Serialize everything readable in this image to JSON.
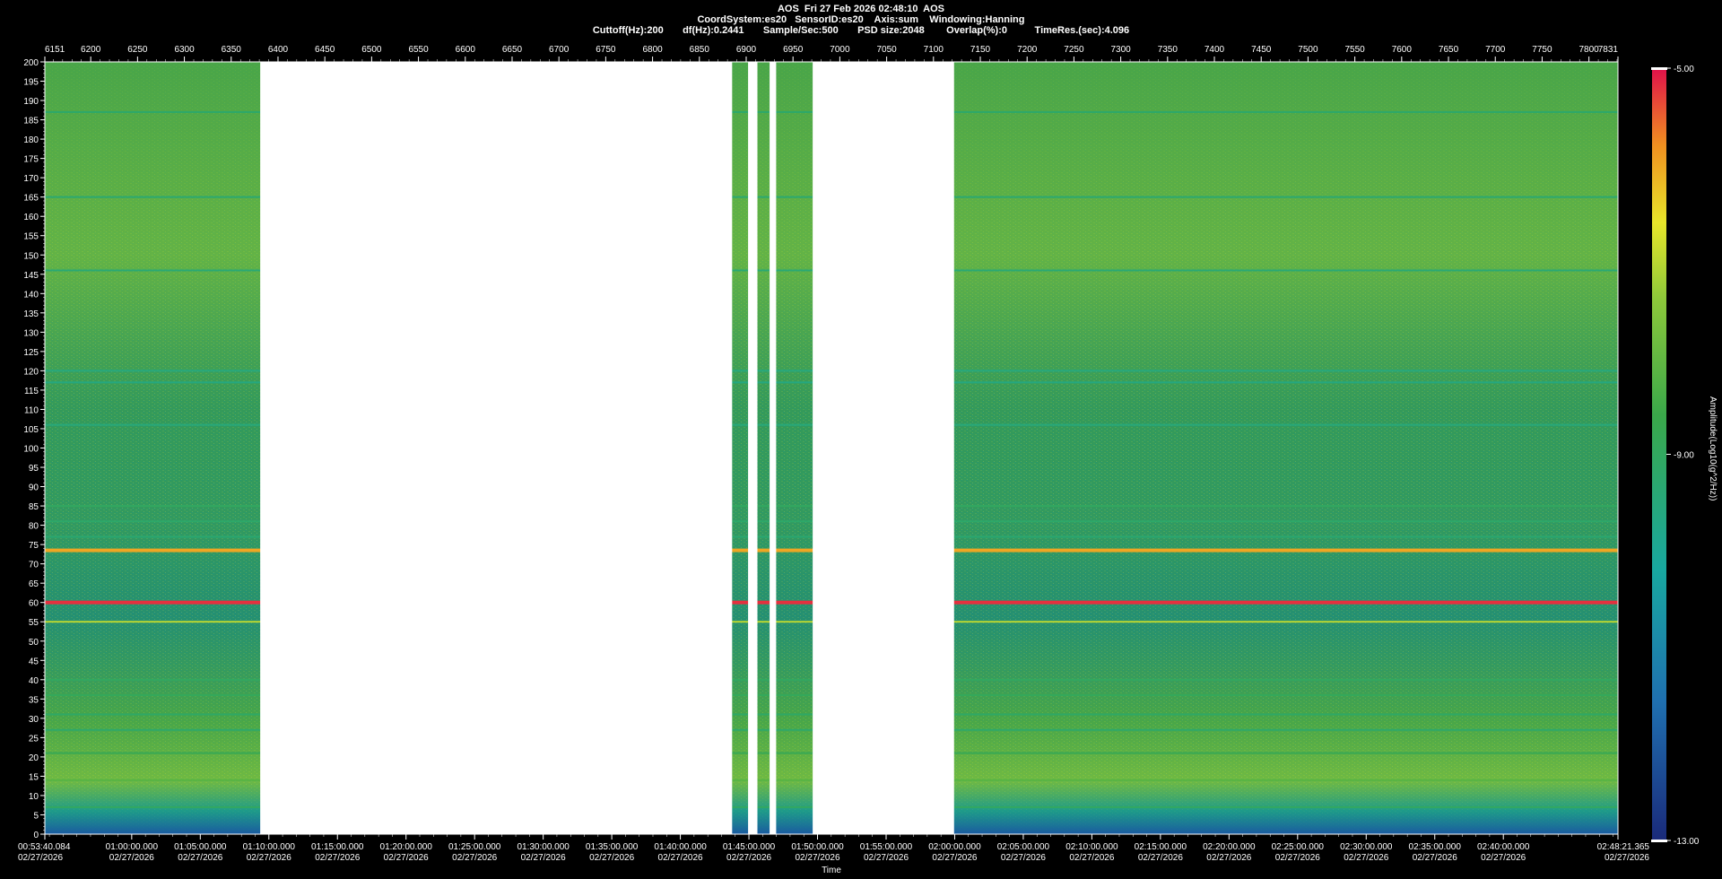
{
  "header": {
    "line1": "AOS  Fri 27 Feb 2026 02:48:10  AOS",
    "line2": "CoordSystem:es20   SensorID:es20    Axis:sum    Windowing:Hanning",
    "line3": "Cuttoff(Hz):200       df(Hz):0.2441       Sample/Sec:500       PSD size:2048        Overlap(%):0          TimeRes.(sec):4.096"
  },
  "chart_data": {
    "type": "heatmap",
    "title": "AOS  Fri 27 Feb 2026 02:48:10  AOS",
    "xlabel": "Time",
    "ylabel": "",
    "colorbar_label": "Amplitude(Log10(g^2/Hz))",
    "colorbar_ticks": [
      "-5.00",
      "-9.00",
      "-13.00"
    ],
    "colorbar_range": [
      -13,
      -5
    ],
    "ylim": [
      0,
      200
    ],
    "y_ticks": [
      0,
      5,
      10,
      15,
      20,
      25,
      30,
      35,
      40,
      45,
      50,
      55,
      60,
      65,
      70,
      75,
      80,
      85,
      90,
      95,
      100,
      105,
      110,
      115,
      120,
      125,
      130,
      135,
      140,
      145,
      150,
      155,
      160,
      165,
      170,
      175,
      180,
      185,
      190,
      195,
      200
    ],
    "top_axis_range": [
      6151,
      7831
    ],
    "top_ticks": [
      "6151",
      "6200",
      "6250",
      "6300",
      "6350",
      "6400",
      "6450",
      "6500",
      "6550",
      "6600",
      "6650",
      "6700",
      "6750",
      "6800",
      "6850",
      "6900",
      "6950",
      "7000",
      "7050",
      "7100",
      "7150",
      "7200",
      "7250",
      "7300",
      "7350",
      "7400",
      "7450",
      "7500",
      "7550",
      "7600",
      "7650",
      "7700",
      "7750",
      "7800",
      "7831"
    ],
    "time_range_minutes": [
      53.668,
      168.356
    ],
    "time_ticks": [
      {
        "t": "00:53:40.084",
        "d": "02/27/2026"
      },
      {
        "t": "01:00:00.000",
        "d": "02/27/2026"
      },
      {
        "t": "01:05:00.000",
        "d": "02/27/2026"
      },
      {
        "t": "01:10:00.000",
        "d": "02/27/2026"
      },
      {
        "t": "01:15:00.000",
        "d": "02/27/2026"
      },
      {
        "t": "01:20:00.000",
        "d": "02/27/2026"
      },
      {
        "t": "01:25:00.000",
        "d": "02/27/2026"
      },
      {
        "t": "01:30:00.000",
        "d": "02/27/2026"
      },
      {
        "t": "01:35:00.000",
        "d": "02/27/2026"
      },
      {
        "t": "01:40:00.000",
        "d": "02/27/2026"
      },
      {
        "t": "01:45:00.000",
        "d": "02/27/2026"
      },
      {
        "t": "01:50:00.000",
        "d": "02/27/2026"
      },
      {
        "t": "01:55:00.000",
        "d": "02/27/2026"
      },
      {
        "t": "02:00:00.000",
        "d": "02/27/2026"
      },
      {
        "t": "02:05:00.000",
        "d": "02/27/2026"
      },
      {
        "t": "02:10:00.000",
        "d": "02/27/2026"
      },
      {
        "t": "02:15:00.000",
        "d": "02/27/2026"
      },
      {
        "t": "02:20:00.000",
        "d": "02/27/2026"
      },
      {
        "t": "02:25:00.000",
        "d": "02/27/2026"
      },
      {
        "t": "02:30:00.000",
        "d": "02/27/2026"
      },
      {
        "t": "02:35:00.000",
        "d": "02/27/2026"
      },
      {
        "t": "02:40:00.000",
        "d": "02/27/2026"
      },
      {
        "t": "02:48:21.365",
        "d": "02/27/2026"
      }
    ],
    "data_gaps_top_axis": [
      [
        6381,
        6885
      ],
      [
        6902,
        6912
      ],
      [
        6925,
        6932
      ],
      [
        6971,
        7122
      ]
    ],
    "horizontal_lines_hz": [
      {
        "hz": 187,
        "level": -9.2
      },
      {
        "hz": 165,
        "level": -9.3
      },
      {
        "hz": 146,
        "level": -9.4
      },
      {
        "hz": 120,
        "level": -9.6
      },
      {
        "hz": 117,
        "level": -9.6
      },
      {
        "hz": 106,
        "level": -9.5
      },
      {
        "hz": 85,
        "level": -9.0
      },
      {
        "hz": 81,
        "level": -9.2
      },
      {
        "hz": 77,
        "level": -9.3
      },
      {
        "hz": 73.5,
        "level": -6.0
      },
      {
        "hz": 60,
        "level": -5.2
      },
      {
        "hz": 55,
        "level": -7.0
      },
      {
        "hz": 40,
        "level": -9.0
      },
      {
        "hz": 36,
        "level": -8.9
      },
      {
        "hz": 31,
        "level": -9.1
      },
      {
        "hz": 27,
        "level": -9.2
      },
      {
        "hz": 21,
        "level": -8.8
      },
      {
        "hz": 14,
        "level": -8.2
      },
      {
        "hz": 7,
        "level": -9.0
      }
    ]
  }
}
